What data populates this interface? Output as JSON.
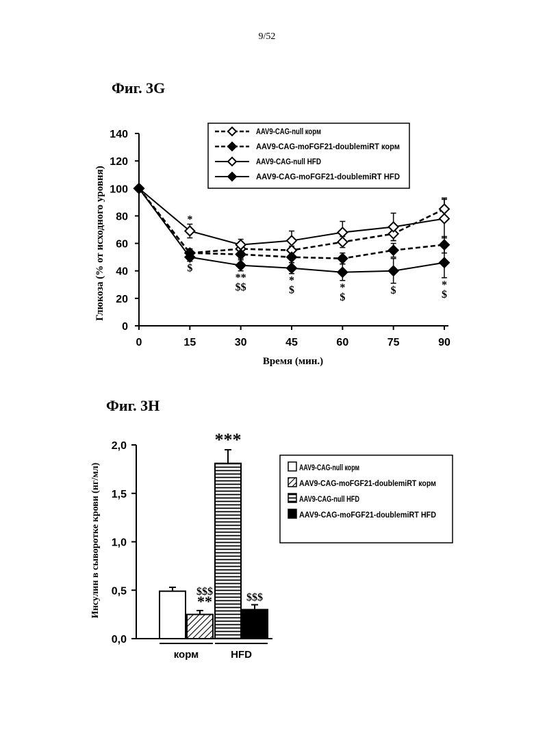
{
  "page_number": "9/52",
  "figures": [
    {
      "title": "Фиг. 3G"
    },
    {
      "title": "Фиг. 3H"
    }
  ],
  "chart_data": [
    {
      "type": "line",
      "xlabel": "Время (мин.)",
      "ylabel": "Глюкоза (% от исходного уровня)",
      "x": [
        0,
        15,
        30,
        45,
        60,
        75,
        90
      ],
      "x_ticks": [
        "0",
        "15",
        "30",
        "45",
        "60",
        "75",
        "90"
      ],
      "y_ticks": [
        "0",
        "20",
        "40",
        "60",
        "80",
        "100",
        "120",
        "140"
      ],
      "xlim": [
        0,
        90
      ],
      "ylim": [
        0,
        140
      ],
      "grid": false,
      "legend_position": "top-right",
      "series": [
        {
          "name": "AAV9-CAG-null корм",
          "values": [
            100,
            53,
            56,
            55,
            61,
            67,
            85
          ],
          "errors": [
            0,
            3,
            3,
            3,
            4,
            5,
            8
          ],
          "line": "dashed",
          "marker": "open-diamond"
        },
        {
          "name": "AAV9-CAG-moFGF21-doublemiRT корм",
          "values": [
            100,
            53,
            52,
            50,
            49,
            55,
            59
          ],
          "errors": [
            0,
            3,
            3,
            4,
            4,
            5,
            6
          ],
          "line": "dashed",
          "marker": "filled-diamond"
        },
        {
          "name": "AAV9-CAG-null HFD",
          "values": [
            100,
            69,
            59,
            62,
            68,
            72,
            78
          ],
          "errors": [
            0,
            5,
            4,
            7,
            8,
            10,
            14
          ],
          "line": "solid",
          "marker": "open-diamond"
        },
        {
          "name": "AAV9-CAG-moFGF21-doublemiRT HFD",
          "values": [
            100,
            50,
            44,
            42,
            39,
            40,
            46
          ],
          "errors": [
            0,
            3,
            4,
            4,
            6,
            9,
            11
          ],
          "line": "solid",
          "marker": "filled-diamond"
        }
      ],
      "annotations": [
        {
          "x": 15,
          "text": "*",
          "position": "above"
        },
        {
          "x": 15,
          "text": "$",
          "position": "below"
        },
        {
          "x": 30,
          "text": "**",
          "position": "below"
        },
        {
          "x": 30,
          "text": "$$",
          "position": "below"
        },
        {
          "x": 45,
          "text": "*",
          "position": "below"
        },
        {
          "x": 45,
          "text": "$",
          "position": "below"
        },
        {
          "x": 60,
          "text": "*",
          "position": "below"
        },
        {
          "x": 60,
          "text": "$",
          "position": "below"
        },
        {
          "x": 75,
          "text": "$",
          "position": "below"
        },
        {
          "x": 90,
          "text": "*",
          "position": "below"
        },
        {
          "x": 90,
          "text": "$",
          "position": "below"
        }
      ]
    },
    {
      "type": "bar",
      "ylabel": "Инсулин в сыворотке крови (нг/мл)",
      "ylim": [
        0,
        2.0
      ],
      "y_ticks": [
        "0,0",
        "0,5",
        "1,0",
        "1,5",
        "2,0"
      ],
      "grid": false,
      "legend_position": "right",
      "groups": [
        "корм",
        "HFD"
      ],
      "series": [
        {
          "name": "AAV9-CAG-null корм",
          "group": "корм",
          "value": 0.49,
          "error": 0.04,
          "fill": "white",
          "annotation": ""
        },
        {
          "name": "AAV9-CAG-moFGF21-doublemiRT корм",
          "group": "корм",
          "value": 0.25,
          "error": 0.04,
          "fill": "diagonal-hatch",
          "annotation": "$$$\n**"
        },
        {
          "name": "AAV9-CAG-null HFD",
          "group": "HFD",
          "value": 1.81,
          "error": 0.14,
          "fill": "horizontal-lines",
          "annotation": "***"
        },
        {
          "name": "AAV9-CAG-moFGF21-doublemiRT HFD",
          "group": "HFD",
          "value": 0.3,
          "error": 0.05,
          "fill": "black",
          "annotation": "$$$"
        }
      ]
    }
  ]
}
